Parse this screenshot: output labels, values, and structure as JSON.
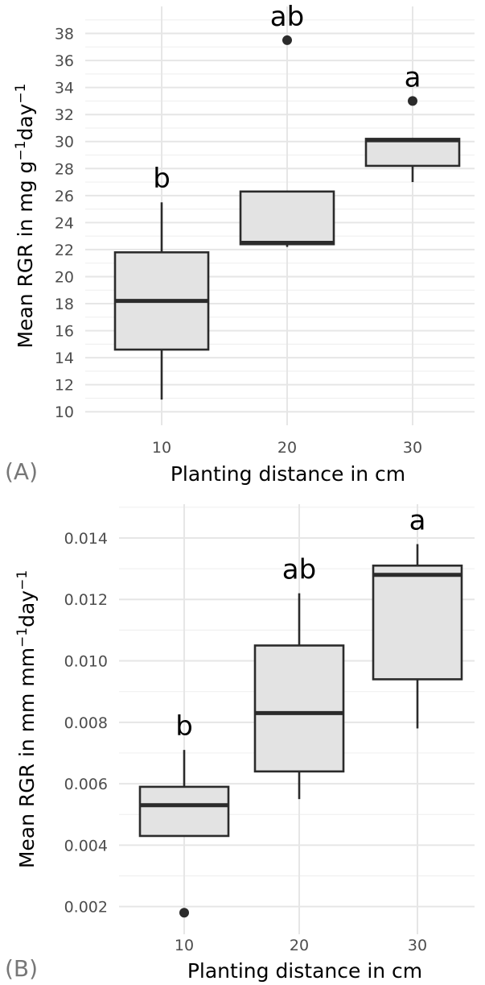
{
  "chart_data": [
    {
      "type": "box",
      "panel_label": "(A)",
      "xlabel": "Planting distance in cm",
      "ylabel_main": "Mean RGR in mg g",
      "ylabel_sup1": "−1",
      "ylabel_mid": "day",
      "ylabel_sup2": "−1",
      "categories": [
        "10",
        "20",
        "30"
      ],
      "ylim": [
        9,
        40
      ],
      "yticks": [
        "10",
        "12",
        "14",
        "16",
        "18",
        "20",
        "22",
        "24",
        "26",
        "28",
        "30",
        "32",
        "34",
        "36",
        "38"
      ],
      "grid": true,
      "boxes": [
        {
          "category": "10",
          "min": 10.9,
          "q1": 14.6,
          "median": 18.2,
          "q3": 21.8,
          "max": 25.5,
          "outliers": [],
          "letter": "b"
        },
        {
          "category": "20",
          "min": 22.2,
          "q1": 22.4,
          "median": 22.5,
          "q3": 26.3,
          "max": 26.3,
          "outliers": [
            37.5
          ],
          "letter": "ab"
        },
        {
          "category": "30",
          "min": 27.0,
          "q1": 28.2,
          "median": 30.1,
          "q3": 30.2,
          "max": 30.2,
          "outliers": [
            33.0
          ],
          "letter": "a"
        }
      ]
    },
    {
      "type": "box",
      "panel_label": "(B)",
      "xlabel": "Planting distance in cm",
      "ylabel_main": "Mean RGR in mm mm",
      "ylabel_sup1": "−1",
      "ylabel_mid": "day",
      "ylabel_sup2": "−1",
      "categories": [
        "10",
        "20",
        "30"
      ],
      "ylim": [
        0.0011,
        0.0151
      ],
      "yticks": [
        "0.002",
        "0.004",
        "0.006",
        "0.008",
        "0.010",
        "0.012",
        "0.014"
      ],
      "grid": true,
      "boxes": [
        {
          "category": "10",
          "min": 0.0043,
          "q1": 0.0043,
          "median": 0.0053,
          "q3": 0.0059,
          "max": 0.0071,
          "outliers": [
            0.0018
          ],
          "letter": "b"
        },
        {
          "category": "20",
          "min": 0.0055,
          "q1": 0.0064,
          "median": 0.0083,
          "q3": 0.0105,
          "max": 0.0122,
          "outliers": [],
          "letter": "ab"
        },
        {
          "category": "30",
          "min": 0.0078,
          "q1": 0.0094,
          "median": 0.0128,
          "q3": 0.0131,
          "max": 0.0138,
          "outliers": [],
          "letter": "a"
        }
      ]
    }
  ]
}
